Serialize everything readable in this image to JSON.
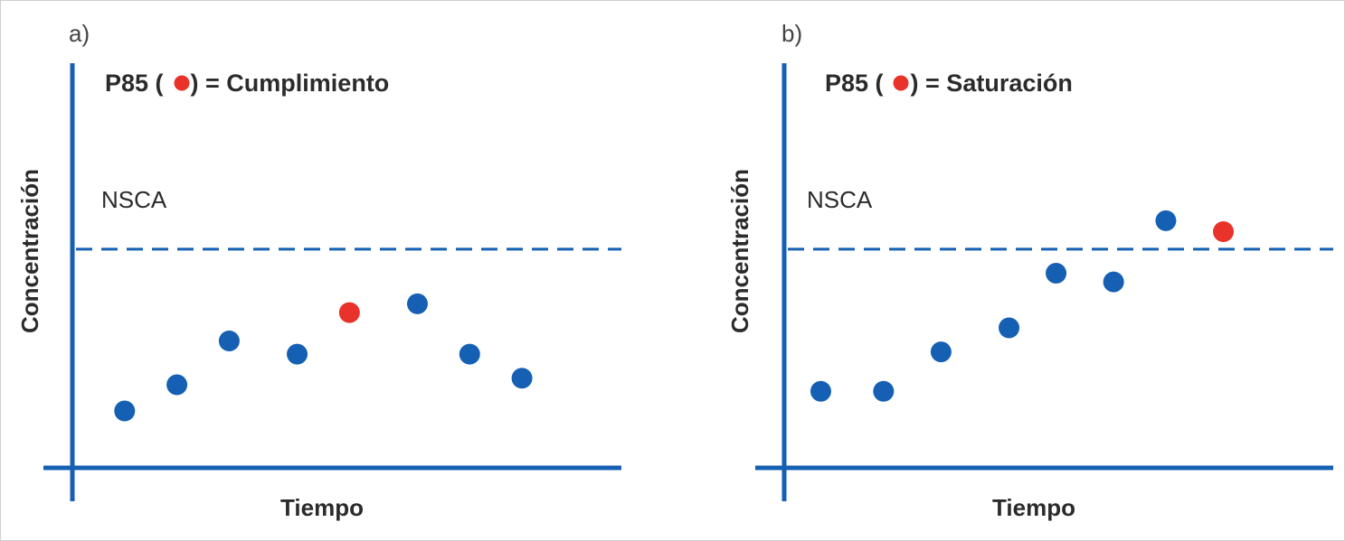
{
  "colors": {
    "axis": "#1560b3",
    "point": "#1560b3",
    "highlight": "#e8322a",
    "text": "#2b2b2b"
  },
  "chart_data": [
    {
      "type": "scatter",
      "panel_label": "a)",
      "title_prefix": "P85 (",
      "title_suffix": ") = Cumplimiento",
      "xlabel": "Tiempo",
      "ylabel": "Concentración",
      "reference_line": {
        "label": "NSCA",
        "y": 100,
        "style": "dashed"
      },
      "xlim": [
        0,
        10
      ],
      "ylim": [
        0,
        185
      ],
      "points": [
        {
          "x": 1,
          "y": 26,
          "highlight": false
        },
        {
          "x": 2,
          "y": 38,
          "highlight": false
        },
        {
          "x": 3,
          "y": 58,
          "highlight": false
        },
        {
          "x": 4.3,
          "y": 52,
          "highlight": false
        },
        {
          "x": 5.3,
          "y": 71,
          "highlight": true
        },
        {
          "x": 6.6,
          "y": 75,
          "highlight": false
        },
        {
          "x": 7.6,
          "y": 52,
          "highlight": false
        },
        {
          "x": 8.6,
          "y": 41,
          "highlight": false
        }
      ]
    },
    {
      "type": "scatter",
      "panel_label": "b)",
      "title_prefix": "P85 (",
      "title_suffix": ") = Saturación",
      "xlabel": "Tiempo",
      "ylabel": "Concentración",
      "reference_line": {
        "label": "NSCA",
        "y": 100,
        "style": "dashed"
      },
      "xlim": [
        0,
        10
      ],
      "ylim": [
        0,
        185
      ],
      "points": [
        {
          "x": 0.7,
          "y": 35,
          "highlight": false
        },
        {
          "x": 1.9,
          "y": 35,
          "highlight": false
        },
        {
          "x": 3.0,
          "y": 53,
          "highlight": false
        },
        {
          "x": 4.3,
          "y": 64,
          "highlight": false
        },
        {
          "x": 5.2,
          "y": 89,
          "highlight": false
        },
        {
          "x": 6.3,
          "y": 85,
          "highlight": false
        },
        {
          "x": 7.3,
          "y": 113,
          "highlight": false
        },
        {
          "x": 8.4,
          "y": 108,
          "highlight": true
        }
      ]
    }
  ]
}
